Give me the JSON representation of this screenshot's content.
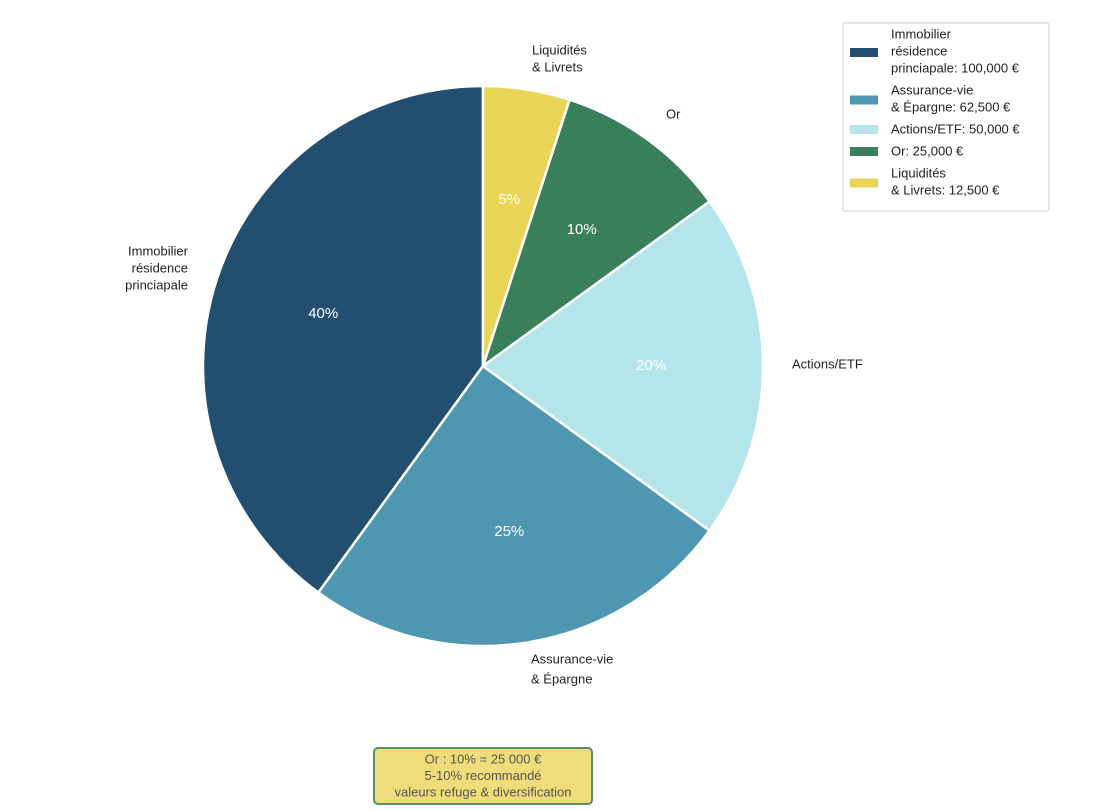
{
  "chart_data": {
    "type": "pie",
    "categories": [
      [
        "Immobilier",
        "résidence",
        "princiapale"
      ],
      [
        "Assurance-vie",
        "& Épargne"
      ],
      [
        "Actions/ETF"
      ],
      [
        "Or"
      ],
      [
        "Liquidités",
        "& Livrets"
      ]
    ],
    "values": [
      40,
      25,
      20,
      10,
      5
    ],
    "value_labels": [
      "40%",
      "25%",
      "20%",
      "10%",
      "5%"
    ],
    "colors": [
      "#224f70",
      "#4f97b0",
      "#b3e5eb",
      "#39805a",
      "#e8d557"
    ],
    "legend": [
      [
        "Immobilier",
        "résidence",
        "princiapale: 100,000 €"
      ],
      [
        "Assurance-vie",
        "& Épargne: 62,500 €"
      ],
      [
        "Actions/ETF: 50,000 €"
      ],
      [
        "Or: 25,000 €"
      ],
      [
        "Liquidités",
        "& Livrets: 12,500 €"
      ]
    ],
    "legend_position": "upper right",
    "annotation": [
      "Or : 10% = 25 000 €",
      "5-10% recommandé",
      "valeurs refuge & diversification"
    ]
  }
}
